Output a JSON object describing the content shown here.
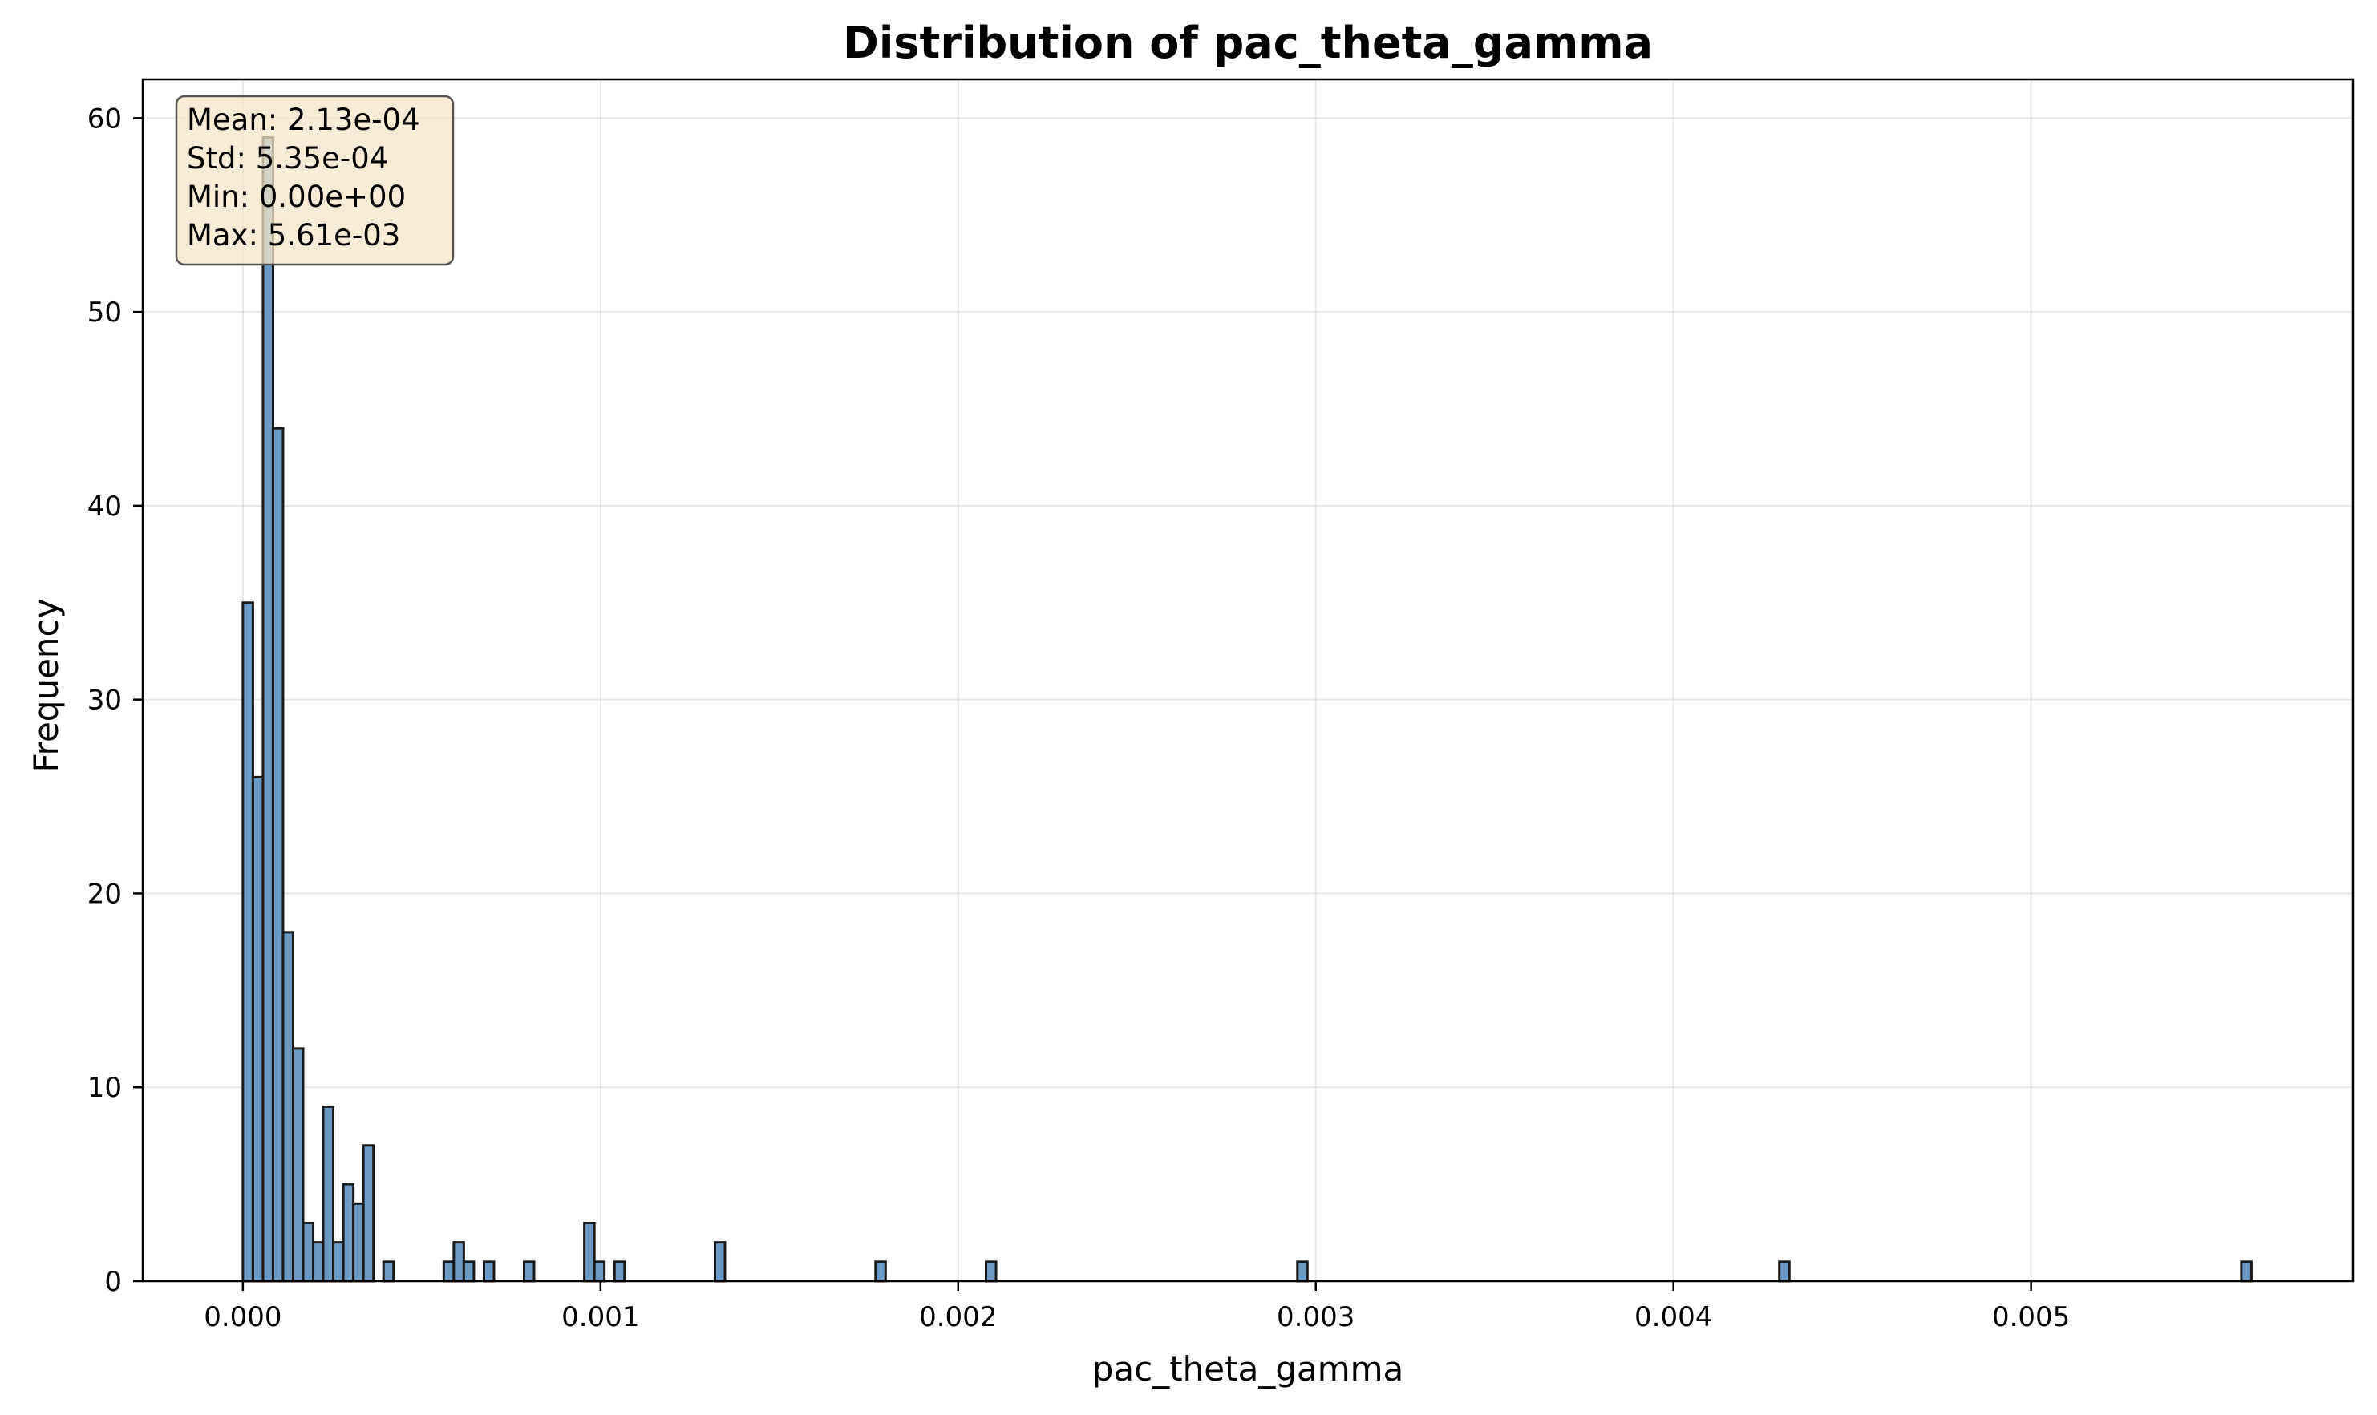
{
  "chart_data": {
    "type": "bar",
    "title": "Distribution of pac_theta_gamma",
    "xlabel": "pac_theta_gamma",
    "ylabel": "Frequency",
    "xlim": [
      -0.00028,
      0.0059
    ],
    "ylim": [
      0,
      62
    ],
    "x_ticks": [
      "0.000",
      "0.001",
      "0.002",
      "0.003",
      "0.004",
      "0.005"
    ],
    "x_tick_values": [
      0,
      0.001,
      0.002,
      0.003,
      0.004,
      0.005
    ],
    "y_ticks": [
      "0",
      "10",
      "20",
      "30",
      "40",
      "50",
      "60"
    ],
    "y_tick_values": [
      0,
      10,
      20,
      30,
      40,
      50,
      60
    ],
    "grid": true,
    "bin_width": 2.81e-05,
    "bins": [
      {
        "x": 0.0,
        "value": 35
      },
      {
        "x": 2.81e-05,
        "value": 26
      },
      {
        "x": 5.62e-05,
        "value": 59
      },
      {
        "x": 8.42e-05,
        "value": 44
      },
      {
        "x": 0.0001123,
        "value": 18
      },
      {
        "x": 0.0001404,
        "value": 12
      },
      {
        "x": 0.0001685,
        "value": 3
      },
      {
        "x": 0.0001966,
        "value": 2
      },
      {
        "x": 0.0002246,
        "value": 9
      },
      {
        "x": 0.0002527,
        "value": 2
      },
      {
        "x": 0.0002808,
        "value": 5
      },
      {
        "x": 0.0003089,
        "value": 4
      },
      {
        "x": 0.000337,
        "value": 7
      },
      {
        "x": 0.0003931,
        "value": 1
      },
      {
        "x": 0.0005616,
        "value": 1
      },
      {
        "x": 0.0005897,
        "value": 2
      },
      {
        "x": 0.0006178,
        "value": 1
      },
      {
        "x": 0.000674,
        "value": 1
      },
      {
        "x": 0.0007862,
        "value": 1
      },
      {
        "x": 0.0009547,
        "value": 3
      },
      {
        "x": 0.0009828,
        "value": 1
      },
      {
        "x": 0.001039,
        "value": 1
      },
      {
        "x": 0.0013198,
        "value": 2
      },
      {
        "x": 0.001769,
        "value": 1
      },
      {
        "x": 0.0020779,
        "value": 1
      },
      {
        "x": 0.0029485,
        "value": 1
      },
      {
        "x": 0.004296,
        "value": 1
      },
      {
        "x": 0.005588,
        "value": 1
      }
    ],
    "bar_color": "#6b9ac4",
    "bar_edge_color": "#1a1a1a",
    "stats": [
      "Mean: 2.13e-04",
      "Std: 5.35e-04",
      "Min: 0.00e+00",
      "Max: 5.61e-03"
    ],
    "stats_box_fill": "#f5e6c8"
  }
}
